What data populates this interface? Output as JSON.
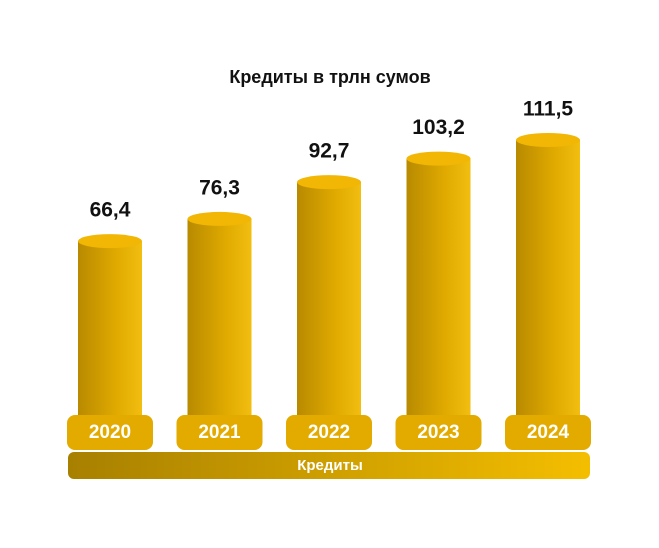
{
  "chart_data": {
    "type": "bar",
    "title": "Кредиты в трлн сумов",
    "categories": [
      "2020",
      "2021",
      "2022",
      "2023",
      "2024"
    ],
    "series": [
      {
        "name": "Кредиты",
        "color": "#f2b705",
        "values": [
          66.4,
          76.3,
          92.7,
          103.2,
          111.5
        ],
        "value_labels": [
          "66,4",
          "76,3",
          "92,7",
          "103,2",
          "111,5"
        ]
      }
    ]
  }
}
